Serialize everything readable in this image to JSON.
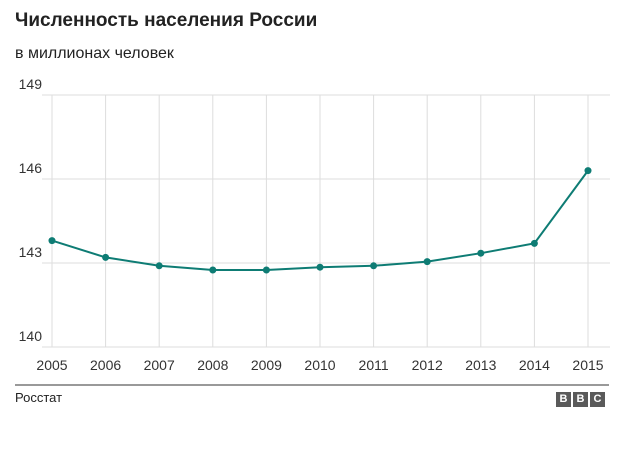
{
  "title": "Численность населения России",
  "subtitle": "в миллионах человек",
  "source": "Росстат",
  "logo": "BBC",
  "colors": {
    "line": "#0e7c74",
    "grid": "#dddddd",
    "axis": "#333333",
    "text": "#333333"
  },
  "chart_data": {
    "type": "line",
    "title": "Численность населения России",
    "subtitle": "в миллионах человек",
    "xlabel": "",
    "ylabel": "",
    "x": [
      "2005",
      "2006",
      "2007",
      "2008",
      "2009",
      "2010",
      "2011",
      "2012",
      "2013",
      "2014",
      "2015"
    ],
    "series": [
      {
        "values": [
          143.8,
          143.2,
          142.9,
          142.75,
          142.75,
          142.85,
          142.9,
          143.05,
          143.35,
          143.7,
          146.3
        ]
      }
    ],
    "ylim": [
      140,
      149
    ],
    "yticks": [
      140,
      143,
      146,
      149
    ],
    "grid": true
  }
}
